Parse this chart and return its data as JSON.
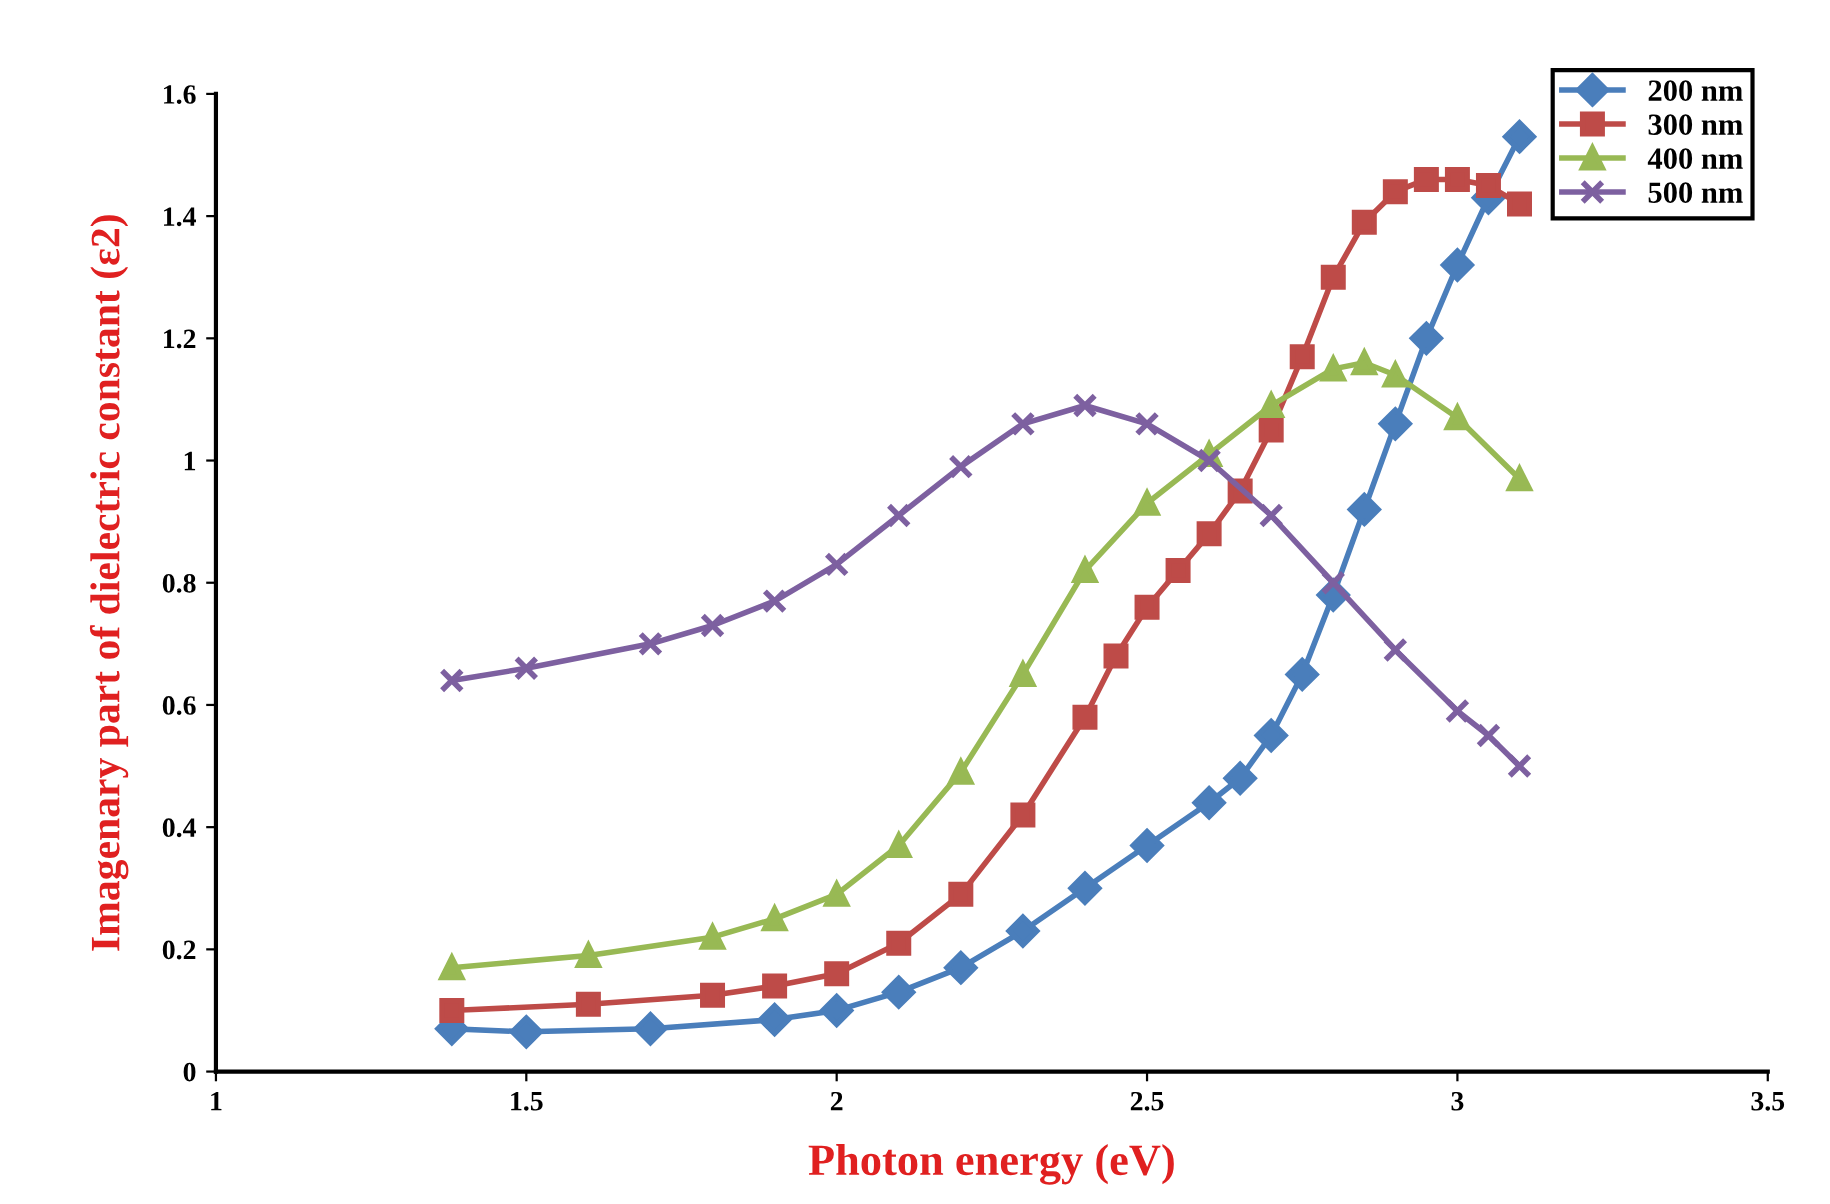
{
  "chart_data": {
    "type": "line",
    "xlabel": "Photon energy (eV)",
    "ylabel": "Imagenary part of dielectric constant (ε2)",
    "xlim": [
      1,
      3.5
    ],
    "xticks": [
      1,
      1.5,
      2,
      2.5,
      3,
      3.5
    ],
    "ylim": [
      0,
      1.6
    ],
    "yticks": [
      0,
      0.2,
      0.4,
      0.6,
      0.8,
      1,
      1.2,
      1.4,
      1.6
    ],
    "grid": false,
    "legend": "top right",
    "line_style": "solid",
    "series": [
      {
        "name": "200 nm",
        "color": "#4a7ebb",
        "marker": "diamond",
        "x": [
          1.38,
          1.5,
          1.7,
          1.9,
          2.0,
          2.1,
          2.2,
          2.3,
          2.4,
          2.5,
          2.6,
          2.65,
          2.7,
          2.75,
          2.8,
          2.85,
          2.9,
          2.95,
          3.0,
          3.05,
          3.1
        ],
        "values": [
          0.07,
          0.065,
          0.07,
          0.085,
          0.1,
          0.13,
          0.17,
          0.23,
          0.3,
          0.37,
          0.44,
          0.48,
          0.55,
          0.65,
          0.78,
          0.92,
          1.06,
          1.2,
          1.32,
          1.43,
          1.53
        ]
      },
      {
        "name": "300 nm",
        "color": "#be4b48",
        "marker": "square",
        "x": [
          1.38,
          1.6,
          1.8,
          1.9,
          2.0,
          2.1,
          2.2,
          2.3,
          2.4,
          2.45,
          2.5,
          2.55,
          2.6,
          2.65,
          2.7,
          2.75,
          2.8,
          2.85,
          2.9,
          2.95,
          3.0,
          3.05,
          3.1
        ],
        "values": [
          0.1,
          0.11,
          0.125,
          0.14,
          0.16,
          0.21,
          0.29,
          0.42,
          0.58,
          0.68,
          0.76,
          0.82,
          0.88,
          0.95,
          1.05,
          1.17,
          1.3,
          1.39,
          1.44,
          1.46,
          1.46,
          1.45,
          1.42
        ]
      },
      {
        "name": "400 nm",
        "color": "#98b954",
        "marker": "triangle",
        "x": [
          1.38,
          1.6,
          1.8,
          1.9,
          2.0,
          2.1,
          2.2,
          2.3,
          2.4,
          2.5,
          2.6,
          2.7,
          2.8,
          2.85,
          2.9,
          3.0,
          3.1
        ],
        "values": [
          0.17,
          0.19,
          0.22,
          0.25,
          0.29,
          0.37,
          0.49,
          0.65,
          0.82,
          0.93,
          1.01,
          1.09,
          1.15,
          1.16,
          1.14,
          1.07,
          0.97
        ]
      },
      {
        "name": "500 nm",
        "color": "#7d60a0",
        "marker": "cross",
        "x": [
          1.38,
          1.5,
          1.7,
          1.8,
          1.9,
          2.0,
          2.1,
          2.2,
          2.3,
          2.4,
          2.5,
          2.6,
          2.7,
          2.8,
          2.9,
          3.0,
          3.05,
          3.1
        ],
        "values": [
          0.64,
          0.66,
          0.7,
          0.73,
          0.77,
          0.83,
          0.91,
          0.99,
          1.06,
          1.09,
          1.06,
          1.0,
          0.91,
          0.8,
          0.69,
          0.59,
          0.55,
          0.5
        ]
      }
    ]
  }
}
